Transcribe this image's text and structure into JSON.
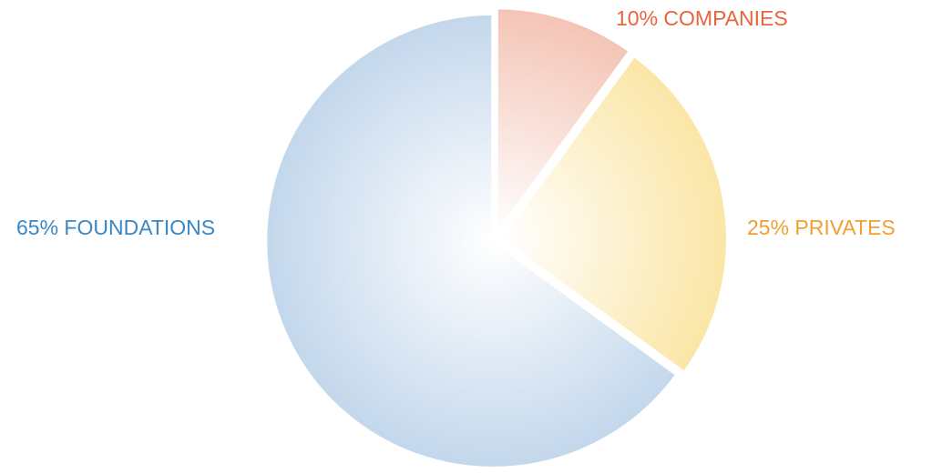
{
  "chart_data": {
    "type": "pie",
    "title": "",
    "start_angle_deg": 0,
    "direction": "clockwise",
    "slices": [
      {
        "label": "10% COMPANIES",
        "name": "COMPANIES",
        "value": 10,
        "color": "#f4c4b5",
        "label_color": "#e8643c"
      },
      {
        "label": "25% PRIVATES",
        "name": "PRIVATES",
        "value": 25,
        "color": "#fbe6a6",
        "label_color": "#f0a030"
      },
      {
        "label": "65% FOUNDATIONS",
        "name": "FOUNDATIONS",
        "value": 65,
        "color": "#c3d7ec",
        "label_color": "#3a87c6"
      }
    ]
  }
}
